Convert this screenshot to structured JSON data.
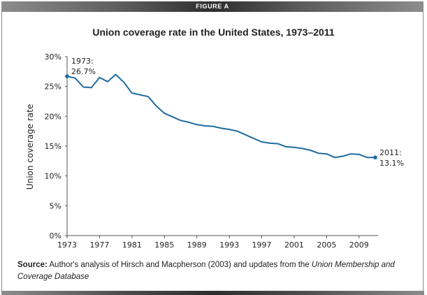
{
  "header": {
    "label": "FIGURE A"
  },
  "chart_data": {
    "type": "line",
    "title": "Union coverage rate in the United States, 1973–2011",
    "xlabel": "",
    "ylabel": "Union coverage rate",
    "xlim": [
      1973,
      2011.3
    ],
    "ylim": [
      0,
      30
    ],
    "x_ticks": [
      1973,
      1977,
      1981,
      1985,
      1989,
      1993,
      1997,
      2001,
      2005,
      2009
    ],
    "x_tick_labels": [
      "1973",
      "1977",
      "1981",
      "1985",
      "1989",
      "1993",
      "1997",
      "2001",
      "2005",
      "2009"
    ],
    "y_ticks": [
      0,
      5,
      10,
      15,
      20,
      25,
      30
    ],
    "y_tick_labels": [
      "0%",
      "5%",
      "10%",
      "15%",
      "20%",
      "25%",
      "30%"
    ],
    "grid": false,
    "legend": "none",
    "series": [
      {
        "name": "Union coverage rate",
        "color": "#1f6b9e",
        "x": [
          1973,
          1974,
          1975,
          1976,
          1977,
          1978,
          1979,
          1980,
          1981,
          1982,
          1983,
          1984,
          1985,
          1986,
          1987,
          1988,
          1989,
          1990,
          1991,
          1992,
          1993,
          1994,
          1995,
          1996,
          1997,
          1998,
          1999,
          2000,
          2001,
          2002,
          2003,
          2004,
          2005,
          2006,
          2007,
          2008,
          2009,
          2010,
          2011
        ],
        "values": [
          26.7,
          26.4,
          24.9,
          24.8,
          26.5,
          25.8,
          27.0,
          25.7,
          23.9,
          23.6,
          23.3,
          21.7,
          20.5,
          19.9,
          19.3,
          19.0,
          18.6,
          18.4,
          18.3,
          18.0,
          17.8,
          17.5,
          16.9,
          16.3,
          15.7,
          15.5,
          15.4,
          14.9,
          14.8,
          14.6,
          14.3,
          13.8,
          13.7,
          13.1,
          13.3,
          13.7,
          13.6,
          13.1,
          13.1
        ]
      }
    ],
    "annotations": [
      {
        "x": 1973,
        "y": 26.7,
        "lines": [
          "1973:",
          "26.7%"
        ]
      },
      {
        "x": 2011,
        "y": 13.1,
        "lines": [
          "2011:",
          "13.1%"
        ]
      }
    ]
  },
  "source": {
    "label": "Source:",
    "text": " Author's analysis of Hirsch and Macpherson (2003) and updates from the ",
    "italic": "Union Membership and Coverage Database"
  }
}
